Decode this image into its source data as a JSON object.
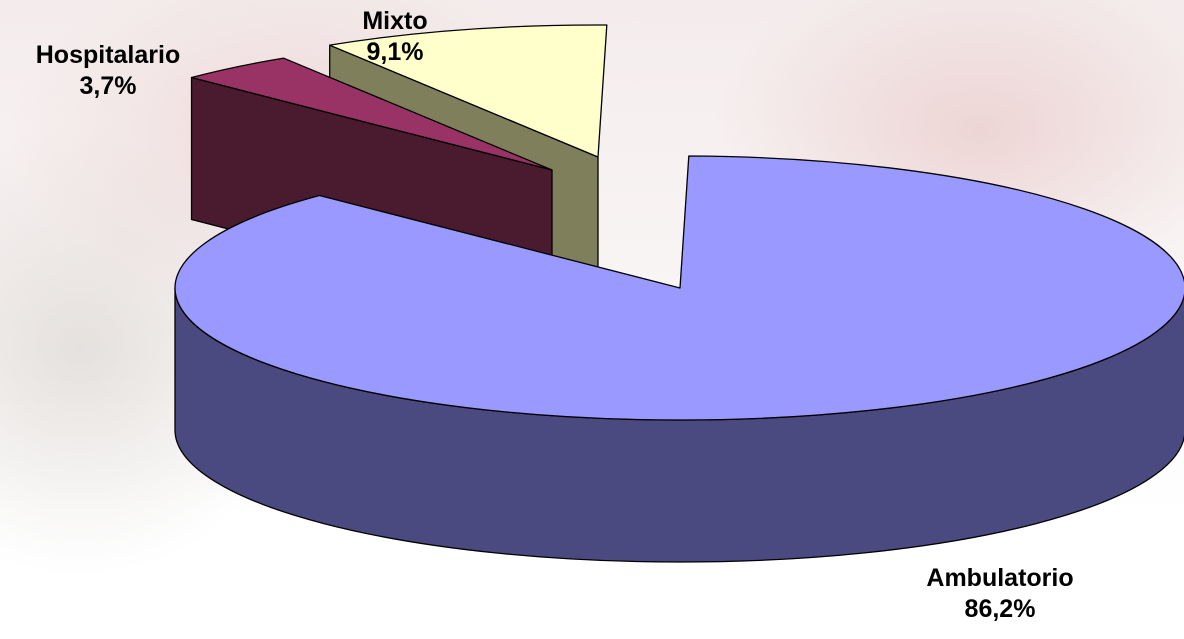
{
  "chart_data": {
    "type": "pie",
    "categories": [
      "Mixto",
      "Hospitalario",
      "Ambulatorio"
    ],
    "values": [
      9.1,
      3.7,
      86.2
    ],
    "value_labels": [
      "9,1%",
      "3,7%",
      "86,2%"
    ],
    "style": "3d-exploded",
    "colors": {
      "Mixto": {
        "top": "#ffffcc",
        "side": "#7f7f5c"
      },
      "Hospitalario": {
        "top": "#993366",
        "side": "#4a1a2e"
      },
      "Ambulatorio": {
        "top": "#9999ff",
        "side": "#4b4a80"
      }
    },
    "title": "",
    "legend": "none"
  }
}
